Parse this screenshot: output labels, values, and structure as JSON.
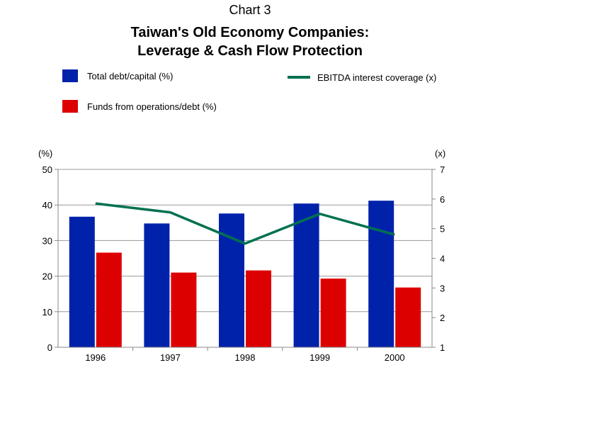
{
  "chart_data": {
    "type": "bar",
    "chart_number": "Chart 3",
    "title_line1": "Taiwan's Old Economy Companies:",
    "title_line2": "Leverage & Cash Flow Protection",
    "categories": [
      "1996",
      "1997",
      "1998",
      "1999",
      "2000"
    ],
    "series": [
      {
        "name": "Total debt/capital (%)",
        "type": "bar",
        "axis": "left",
        "color": "#0022aa",
        "values": [
          36.7,
          34.8,
          37.6,
          40.4,
          41.2
        ]
      },
      {
        "name": "Funds from operations/debt (%)",
        "type": "bar",
        "axis": "left",
        "color": "#dd0000",
        "values": [
          26.6,
          21.0,
          21.6,
          19.3,
          16.8
        ]
      },
      {
        "name": "EBITDA interest coverage (x)",
        "type": "line",
        "axis": "right",
        "color": "#007050",
        "values": [
          5.85,
          5.55,
          4.5,
          5.5,
          4.8
        ]
      }
    ],
    "left_axis": {
      "unit": "(%)",
      "ticks": [
        "0",
        "10",
        "20",
        "30",
        "40",
        "50"
      ],
      "ylim": [
        0,
        50
      ]
    },
    "right_axis": {
      "unit": "(x)",
      "ticks": [
        "1",
        "2",
        "3",
        "4",
        "5",
        "6",
        "7"
      ],
      "ylim": [
        1,
        7
      ]
    },
    "grid": true,
    "legend_placement": "top"
  }
}
